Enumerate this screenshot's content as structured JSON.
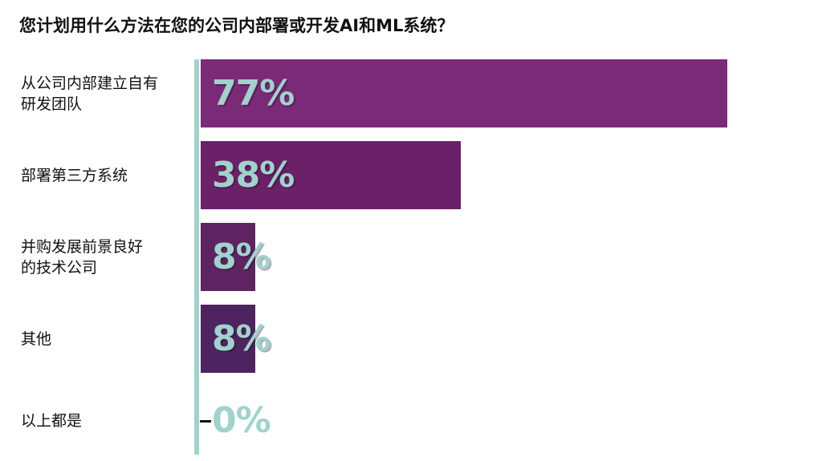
{
  "chart_data": {
    "type": "bar",
    "orientation": "horizontal",
    "title": "您计划用什么方法在您的公司内部署或开发AI和ML系统？",
    "categories": [
      "从公司内部建立自有研发团队",
      "部署第三方系统",
      "并购发展前景良好的技术公司",
      "其他",
      "以上都是"
    ],
    "category_lines": [
      [
        "从公司内部建立自有",
        "研发团队"
      ],
      [
        "部署第三方系统"
      ],
      [
        "并购发展前景良好",
        "的技术公司"
      ],
      [
        "其他"
      ],
      [
        "以上都是"
      ]
    ],
    "values": [
      77,
      38,
      8,
      8,
      0
    ],
    "value_labels": [
      "77%",
      "38%",
      "8%",
      "8%",
      "0%"
    ],
    "xlim": [
      0,
      100
    ],
    "grid": false,
    "legend": "none",
    "colors": {
      "bars": [
        "#7b2a78",
        "#6a2168",
        "#5e2462",
        "#4e2460",
        "#4e2460"
      ],
      "value_label": "#9fd3cc",
      "axis": "#9fd3cc"
    }
  }
}
